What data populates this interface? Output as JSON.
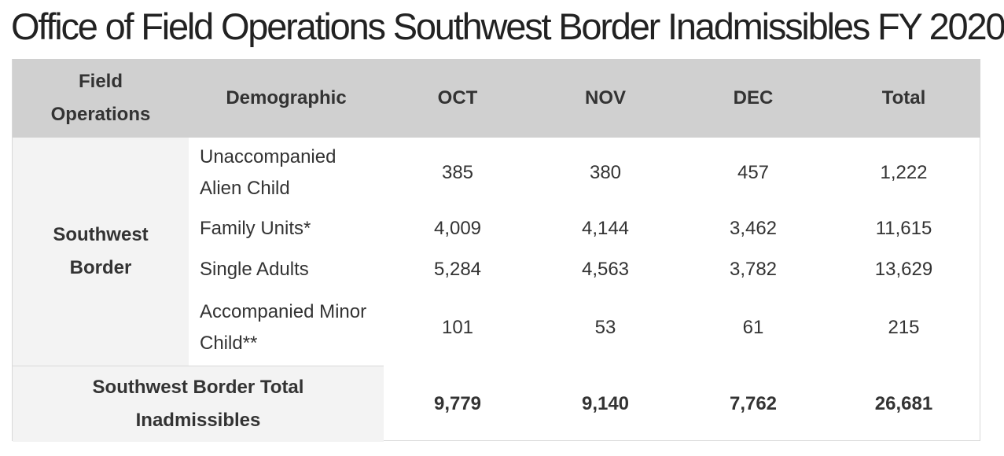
{
  "page": {
    "title": "Office of Field Operations Southwest Border Inadmissibles FY 2020"
  },
  "table": {
    "headers": {
      "field": "Field Operations",
      "demographic": "Demographic",
      "oct": "OCT",
      "nov": "NOV",
      "dec": "DEC",
      "total": "Total"
    },
    "region": "Southwest Border",
    "rows": [
      {
        "demographic": "Unaccompanied Alien Child",
        "oct": "385",
        "nov": "380",
        "dec": "457",
        "total": "1,222"
      },
      {
        "demographic": "Family Units*",
        "oct": "4,009",
        "nov": "4,144",
        "dec": "3,462",
        "total": "11,615"
      },
      {
        "demographic": "Single Adults",
        "oct": "5,284",
        "nov": "4,563",
        "dec": "3,782",
        "total": "13,629"
      },
      {
        "demographic": "Accompanied Minor Child**",
        "oct": "101",
        "nov": "53",
        "dec": "61",
        "total": "215"
      }
    ],
    "total_row": {
      "label": "Southwest Border Total Inadmissibles",
      "oct": "9,779",
      "nov": "9,140",
      "dec": "7,762",
      "total": "26,681"
    }
  },
  "colors": {
    "header_bg": "#d0d0d0",
    "label_bg": "#f3f3f3",
    "border": "#d9d9d9",
    "text": "#333333"
  }
}
